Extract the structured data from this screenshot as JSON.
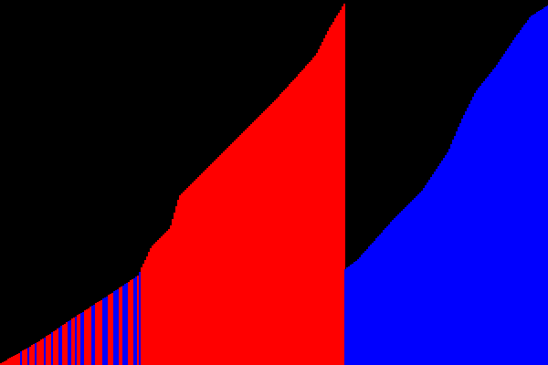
{
  "colors": {
    "background": "#000000",
    "red": "#ff0000",
    "blue": "#0000ff"
  }
}
